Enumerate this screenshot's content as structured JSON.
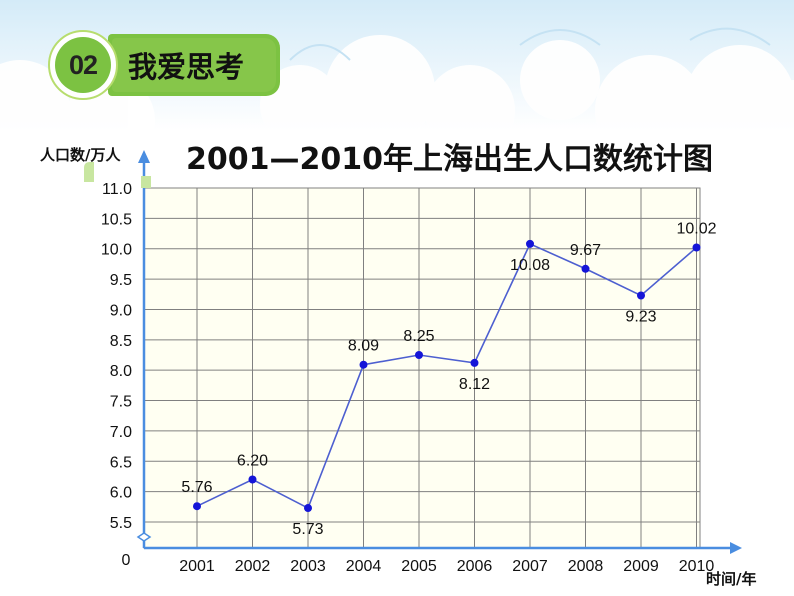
{
  "section": {
    "number": "02",
    "label": "我爱思考"
  },
  "colors": {
    "grid": "#808080",
    "background": "#fffff2",
    "line": "#4d5fd0",
    "point": "#1515d8",
    "axis": "#4a8de0",
    "badge": "#7cc242"
  },
  "chart_data": {
    "type": "line",
    "title": "2001—2010年上海出生人口数统计图",
    "ylabel": "人口数/万人",
    "xlabel": "时间/年",
    "categories": [
      "2001",
      "2002",
      "2003",
      "2004",
      "2005",
      "2006",
      "2007",
      "2008",
      "2009",
      "2010"
    ],
    "values": [
      5.76,
      6.2,
      5.73,
      8.09,
      8.25,
      8.12,
      10.08,
      9.67,
      9.23,
      10.02
    ],
    "value_labels": [
      "5.76",
      "6.20",
      "5.73",
      "8.09",
      "8.25",
      "8.12",
      "10.08",
      "9.67",
      "9.23",
      "10.02"
    ],
    "y_ticks": [
      "11.0",
      "10.5",
      "10.0",
      "9.5",
      "9.0",
      "8.5",
      "8.0",
      "7.5",
      "7.0",
      "6.5",
      "6.0",
      "5.5"
    ],
    "y_origin_label": "0",
    "ylim": [
      5.5,
      11.0
    ],
    "y_axis_break": true,
    "grid": true,
    "data_labels": true
  }
}
